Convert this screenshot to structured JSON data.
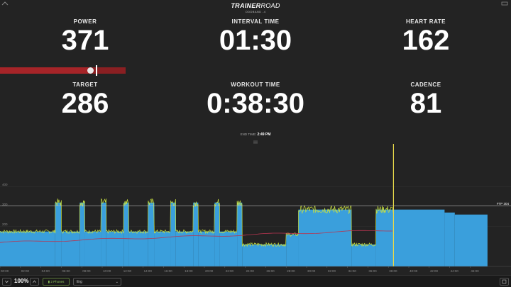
{
  "header": {
    "logo_bold": "TRAINER",
    "logo_light": "ROAD",
    "subtitle": "ODDBAND -4"
  },
  "metrics": {
    "power": {
      "label": "POWER",
      "value": "371"
    },
    "interval_time": {
      "label": "INTERVAL TIME",
      "value": "01:30"
    },
    "heart_rate": {
      "label": "HEART RATE",
      "value": "162"
    },
    "target": {
      "label": "TARGET",
      "value": "286"
    },
    "workout_time": {
      "label": "WORKOUT TIME",
      "value": "0:38:30"
    },
    "cadence": {
      "label": "CADENCE",
      "value": "81"
    }
  },
  "power_bar": {
    "fill_fraction": 0.72,
    "target_fraction": 0.765
  },
  "end_time": {
    "label": "END TIME:",
    "value": "2:49 PM"
  },
  "chart_data": {
    "type": "area",
    "ylim": [
      0,
      600
    ],
    "y_ticks": [
      "400",
      "300",
      "200"
    ],
    "ftp_label": "FTP 304",
    "ftp_value": 304,
    "xlim": [
      0,
      50
    ],
    "x_ticks": [
      "00:00",
      "02:00",
      "04:00",
      "06:00",
      "08:00",
      "10:00",
      "12:00",
      "14:00",
      "16:00",
      "18:00",
      "20:00",
      "22:00",
      "24:00",
      "26:00",
      "28:00",
      "30:00",
      "32:00",
      "34:00",
      "36:00",
      "38:00",
      "40:00",
      "42:00",
      "44:00",
      "46:00"
    ],
    "current_time_min": 38.5,
    "target_segments": [
      {
        "from": 0,
        "to": 5.4,
        "watts": 175
      },
      {
        "from": 5.4,
        "to": 6.0,
        "watts": 320
      },
      {
        "from": 6.0,
        "to": 7.8,
        "watts": 175
      },
      {
        "from": 7.8,
        "to": 8.3,
        "watts": 320
      },
      {
        "from": 8.3,
        "to": 9.9,
        "watts": 175
      },
      {
        "from": 9.9,
        "to": 10.4,
        "watts": 320
      },
      {
        "from": 10.4,
        "to": 12.1,
        "watts": 175
      },
      {
        "from": 12.1,
        "to": 12.6,
        "watts": 320
      },
      {
        "from": 12.6,
        "to": 14.5,
        "watts": 175
      },
      {
        "from": 14.5,
        "to": 15.1,
        "watts": 320
      },
      {
        "from": 15.1,
        "to": 16.7,
        "watts": 175
      },
      {
        "from": 16.7,
        "to": 17.2,
        "watts": 320
      },
      {
        "from": 17.2,
        "to": 18.9,
        "watts": 175
      },
      {
        "from": 18.9,
        "to": 19.4,
        "watts": 320
      },
      {
        "from": 19.4,
        "to": 21.0,
        "watts": 175
      },
      {
        "from": 21.0,
        "to": 21.5,
        "watts": 320
      },
      {
        "from": 21.5,
        "to": 23.2,
        "watts": 175
      },
      {
        "from": 23.2,
        "to": 23.7,
        "watts": 320
      },
      {
        "from": 23.7,
        "to": 28.0,
        "watts": 110
      },
      {
        "from": 28.0,
        "to": 29.2,
        "watts": 160
      },
      {
        "from": 29.2,
        "to": 34.4,
        "watts": 285
      },
      {
        "from": 34.4,
        "to": 36.8,
        "watts": 110
      },
      {
        "from": 36.8,
        "to": 38.5,
        "watts": 285
      },
      {
        "from": 38.5,
        "to": 43.5,
        "watts": 285
      },
      {
        "from": 43.5,
        "to": 44.5,
        "watts": 270
      },
      {
        "from": 44.5,
        "to": 47.7,
        "watts": 260
      },
      {
        "from": 47.7,
        "to": 50,
        "watts": 0
      }
    ]
  },
  "bottom_bar": {
    "zoom": "100%",
    "pill_label": "2 Phones",
    "mode_select": "Erg"
  },
  "colors": {
    "background": "#232323",
    "target_fill": "#3a9fdc",
    "power_line": "#c8e040",
    "hr_line": "#b83550",
    "ftp_line": "#c7c7c7",
    "marker": "#e7d84a"
  }
}
